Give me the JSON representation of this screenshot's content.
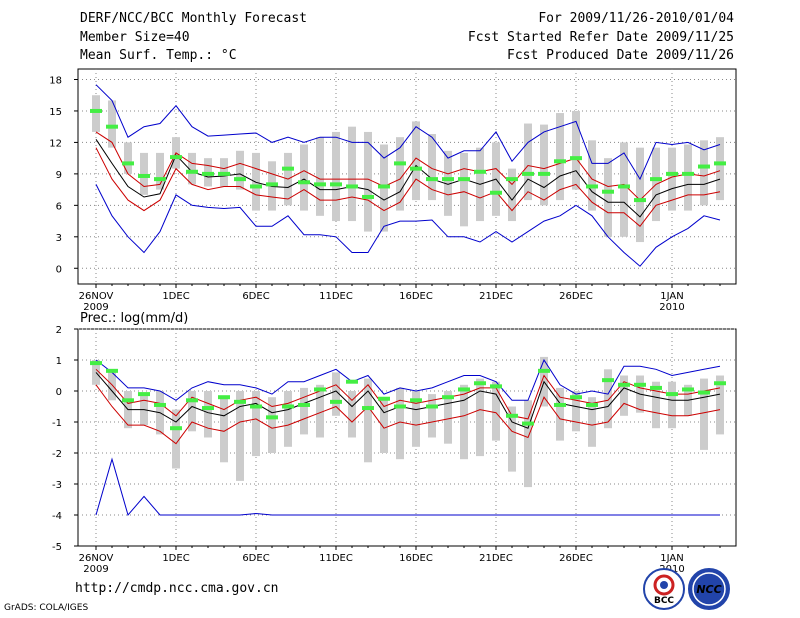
{
  "header": {
    "title": "DERF/NCC/BCC Monthly Forecast",
    "member_size": "Member Size=40",
    "variable": "Mean Surf. Temp.: °C",
    "period": "For 2009/11/26-2010/01/04",
    "started": "Fcst Started Refer Date 2009/11/25",
    "produced": "Fcst Produced Date 2009/11/26"
  },
  "footer": {
    "url": "http://cmdp.ncc.cma.gov.cn",
    "credit": "GrADS: COLA/IGES",
    "logo_bcc": "BCC",
    "logo_ncc": "NCC"
  },
  "colors": {
    "max_min": "#0000cc",
    "spread": "#cc0000",
    "mean": "#000000",
    "median": "#44ee44",
    "box": "#cccccc"
  },
  "chart_data": [
    {
      "type": "line",
      "title": "Mean Surf. Temp.: °C",
      "ylim": [
        -1.5,
        19
      ],
      "yticks": [
        0,
        3,
        6,
        9,
        12,
        15,
        18
      ],
      "xticks": [
        {
          "day": 0,
          "label": "26NOV",
          "sub": "2009"
        },
        {
          "day": 5,
          "label": "1DEC",
          "sub": ""
        },
        {
          "day": 10,
          "label": "6DEC",
          "sub": ""
        },
        {
          "day": 15,
          "label": "11DEC",
          "sub": ""
        },
        {
          "day": 20,
          "label": "16DEC",
          "sub": ""
        },
        {
          "day": 25,
          "label": "21DEC",
          "sub": ""
        },
        {
          "day": 30,
          "label": "26DEC",
          "sub": ""
        },
        {
          "day": 36,
          "label": "1JAN",
          "sub": "2010"
        }
      ],
      "days": 40,
      "series": [
        {
          "name": "max",
          "values": [
            17.5,
            16,
            12.5,
            13.5,
            13.8,
            15.5,
            13.5,
            12.6,
            12.7,
            12.8,
            12.9,
            12,
            12.5,
            12,
            12.5,
            12.5,
            12,
            12,
            10.5,
            11.5,
            13.5,
            12.5,
            10.5,
            11.2,
            11.2,
            13,
            10.2,
            12,
            13,
            13.5,
            14,
            10,
            10,
            11,
            8.5,
            12,
            11.8,
            12,
            11.3,
            11.8
          ]
        },
        {
          "name": "upper",
          "values": [
            13,
            12,
            9,
            7.8,
            8,
            11,
            10,
            9.8,
            9.5,
            10,
            9.5,
            9,
            8.5,
            9.3,
            8.5,
            8.5,
            8.5,
            8.5,
            7.8,
            8.5,
            10.5,
            9.5,
            9,
            9.5,
            9.2,
            9.5,
            8,
            9.8,
            9.5,
            10,
            10.5,
            8.5,
            7.8,
            8,
            6.5,
            8,
            8.7,
            9,
            8.8,
            9.3
          ]
        },
        {
          "name": "mean",
          "values": [
            12.3,
            10,
            7.8,
            6.8,
            7.1,
            10.8,
            9.2,
            8.7,
            8.8,
            9,
            8.2,
            7.8,
            7.7,
            8.5,
            7.5,
            7.5,
            7.8,
            7.5,
            6.5,
            7.3,
            9.8,
            8.5,
            8,
            8.5,
            8,
            8.5,
            6.5,
            8.5,
            7.7,
            8.8,
            9.3,
            7.3,
            6.3,
            6.3,
            4.9,
            7,
            7.6,
            8,
            8,
            8.5
          ]
        },
        {
          "name": "lower",
          "values": [
            11.5,
            8.5,
            6.5,
            5.5,
            6.5,
            9.5,
            8,
            7.5,
            7.8,
            7.8,
            7,
            6.8,
            6.6,
            7.5,
            6.5,
            6.5,
            6.8,
            6.5,
            5.5,
            6.3,
            8.5,
            7.5,
            7,
            7.3,
            6.7,
            7.3,
            5.5,
            7.3,
            6.5,
            7.5,
            8,
            6.3,
            5.3,
            5.3,
            4,
            6,
            6.5,
            7,
            7,
            7.3
          ]
        },
        {
          "name": "min",
          "values": [
            8,
            5,
            3,
            1.5,
            3.5,
            7,
            6,
            5.8,
            5.7,
            5.8,
            4,
            4,
            5,
            3.2,
            3.2,
            3,
            1.5,
            1.5,
            4,
            4.5,
            4.5,
            4.6,
            3,
            3,
            2.5,
            3.5,
            2.5,
            3.5,
            4.5,
            5,
            6,
            5,
            3,
            1.5,
            0.2,
            2,
            3,
            3.8,
            5,
            4.6
          ]
        },
        {
          "name": "median",
          "values": [
            15,
            13.5,
            10,
            8.8,
            8.5,
            10.6,
            9.2,
            9,
            9,
            8.5,
            7.8,
            8,
            9.5,
            8.2,
            8,
            8,
            7.8,
            6.8,
            7.8,
            10,
            9.5,
            8.5,
            8.5,
            8.5,
            9.2,
            7.2,
            8.5,
            9,
            9,
            10.2,
            10.5,
            7.8,
            7.3,
            7.8,
            6.5,
            8.5,
            9,
            9,
            9.7,
            10
          ]
        },
        {
          "name": "box_high",
          "values": [
            16.5,
            16,
            12,
            11,
            11,
            12.5,
            11,
            10.5,
            10.5,
            11.2,
            11,
            10.2,
            11,
            11.8,
            12.5,
            13,
            13.5,
            13,
            11.8,
            12.5,
            14,
            12.8,
            11.2,
            11,
            11.5,
            12,
            9.5,
            13.8,
            13.7,
            14.8,
            15,
            12.2,
            10.5,
            12,
            11.5,
            11.5,
            11.5,
            11.8,
            12.2,
            12.5
          ]
        },
        {
          "name": "box_low",
          "values": [
            13,
            11.5,
            9,
            7,
            7.5,
            9.5,
            8,
            7.8,
            7.8,
            7.5,
            5.5,
            5.5,
            6,
            5.5,
            5,
            4.5,
            4.5,
            3.5,
            3.5,
            5.5,
            6.5,
            6.5,
            5,
            4,
            4.5,
            5,
            4.5,
            6.5,
            6,
            6.5,
            7.5,
            5.5,
            3,
            3,
            2.5,
            4.5,
            5.5,
            5.5,
            6,
            6.5
          ]
        }
      ]
    },
    {
      "type": "line",
      "title": "Prec.: log(mm/d)",
      "ylim": [
        -5,
        2
      ],
      "yticks": [
        -5,
        -4,
        -3,
        -2,
        -1,
        0,
        1,
        2
      ],
      "xticks": [
        {
          "day": 0,
          "label": "26NOV",
          "sub": "2009"
        },
        {
          "day": 5,
          "label": "1DEC",
          "sub": ""
        },
        {
          "day": 10,
          "label": "6DEC",
          "sub": ""
        },
        {
          "day": 15,
          "label": "11DEC",
          "sub": ""
        },
        {
          "day": 20,
          "label": "16DEC",
          "sub": ""
        },
        {
          "day": 25,
          "label": "21DEC",
          "sub": ""
        },
        {
          "day": 30,
          "label": "26DEC",
          "sub": ""
        },
        {
          "day": 36,
          "label": "1JAN",
          "sub": "2010"
        }
      ],
      "days": 40,
      "series": [
        {
          "name": "max",
          "values": [
            1,
            0.6,
            0.1,
            0.1,
            0,
            -0.3,
            0.1,
            0.3,
            0.2,
            0.2,
            0.1,
            -0.1,
            0.3,
            0.3,
            0.5,
            0.7,
            0.3,
            0.5,
            -0.1,
            0.1,
            0,
            0.1,
            0.3,
            0.5,
            0.5,
            0.3,
            -0.3,
            -0.3,
            1,
            0.2,
            -0.1,
            0,
            -0.1,
            0.8,
            0.8,
            0.7,
            0.5,
            0.6,
            0.7,
            0.8
          ]
        },
        {
          "name": "upper",
          "values": [
            0.7,
            0.2,
            -0.4,
            -0.3,
            -0.4,
            -0.8,
            -0.2,
            -0.4,
            -0.6,
            -0.3,
            -0.2,
            -0.5,
            -0.4,
            -0.2,
            0,
            0.2,
            -0.3,
            0.2,
            -0.5,
            -0.3,
            -0.4,
            -0.3,
            -0.2,
            -0.1,
            0.1,
            0.1,
            -0.8,
            -0.9,
            0.5,
            -0.2,
            -0.3,
            -0.4,
            -0.3,
            0.3,
            0.1,
            0,
            -0.1,
            -0.1,
            0,
            0.1
          ]
        },
        {
          "name": "mean",
          "values": [
            0.6,
            0,
            -0.6,
            -0.6,
            -0.7,
            -1,
            -0.5,
            -0.7,
            -0.8,
            -0.5,
            -0.4,
            -0.7,
            -0.6,
            -0.4,
            -0.2,
            0,
            -0.5,
            0,
            -0.7,
            -0.5,
            -0.6,
            -0.5,
            -0.4,
            -0.3,
            0,
            -0.1,
            -1,
            -1.2,
            0.3,
            -0.4,
            -0.5,
            -0.6,
            -0.5,
            0.1,
            -0.1,
            -0.2,
            -0.3,
            -0.3,
            -0.2,
            -0.1
          ]
        },
        {
          "name": "lower",
          "values": [
            0.2,
            -0.5,
            -1.1,
            -1.1,
            -1.3,
            -1.7,
            -1,
            -1.2,
            -1.3,
            -1,
            -0.9,
            -1.2,
            -1.1,
            -0.9,
            -0.7,
            -0.5,
            -1,
            -0.5,
            -1.2,
            -1,
            -1.1,
            -1,
            -0.9,
            -0.8,
            -0.6,
            -0.7,
            -1.3,
            -1.5,
            -0.2,
            -0.9,
            -1,
            -1.1,
            -1,
            -0.4,
            -0.6,
            -0.7,
            -0.8,
            -0.8,
            -0.7,
            -0.6
          ]
        },
        {
          "name": "min",
          "values": [
            -4,
            -2.2,
            -4,
            -3.4,
            -4,
            -4,
            -4,
            -4,
            -4,
            -4,
            -3.95,
            -4,
            -4,
            -4,
            -4,
            -4,
            -4,
            -4,
            -4,
            -4,
            -4,
            -4,
            -4,
            -4,
            -4,
            -4,
            -4,
            -4,
            -4,
            -4,
            -4,
            -4,
            -4,
            -4,
            -4,
            -4,
            -4,
            -4,
            -4,
            -4
          ]
        },
        {
          "name": "median",
          "values": [
            0.9,
            0.65,
            -0.3,
            -0.1,
            -0.45,
            -1.2,
            -0.3,
            -0.55,
            -0.2,
            -0.35,
            -0.5,
            -0.85,
            -0.5,
            -0.45,
            0.05,
            -0.35,
            0.3,
            -0.55,
            -0.25,
            -0.5,
            -0.3,
            -0.5,
            -0.2,
            0.05,
            0.25,
            0.15,
            -0.8,
            -1.05,
            0.65,
            -0.45,
            -0.2,
            -0.45,
            0.35,
            0.2,
            0.2,
            0.1,
            -0.1,
            0.05,
            -0.05,
            0.25
          ]
        },
        {
          "name": "box_high",
          "values": [
            1,
            0.7,
            0,
            -0.1,
            0,
            -0.6,
            0,
            0,
            -0.2,
            0,
            0,
            -0.2,
            0,
            0.1,
            0.2,
            0.6,
            0,
            0.4,
            -0.2,
            0.1,
            0,
            -0.1,
            0,
            0.2,
            0.4,
            0.3,
            -0.5,
            -0.3,
            1.1,
            0.1,
            0,
            -0.2,
            0.7,
            0.5,
            0.5,
            0.3,
            0.3,
            0.2,
            0.4,
            0.5
          ]
        },
        {
          "name": "box_low",
          "values": [
            0.2,
            -0.3,
            -1.2,
            -1.1,
            -1.4,
            -2.5,
            -1.3,
            -1.5,
            -2.3,
            -2.9,
            -2.1,
            -2,
            -1.8,
            -1.4,
            -1.5,
            -0.8,
            -1.5,
            -2.3,
            -2,
            -2.2,
            -1.8,
            -1.5,
            -1.7,
            -2.2,
            -2.1,
            -1.6,
            -2.6,
            -3.1,
            -0.5,
            -1.6,
            -1.3,
            -1.8,
            -1.2,
            -0.8,
            -0.7,
            -1.2,
            -1.2,
            -0.8,
            -1.9,
            -1.4
          ]
        }
      ]
    }
  ]
}
